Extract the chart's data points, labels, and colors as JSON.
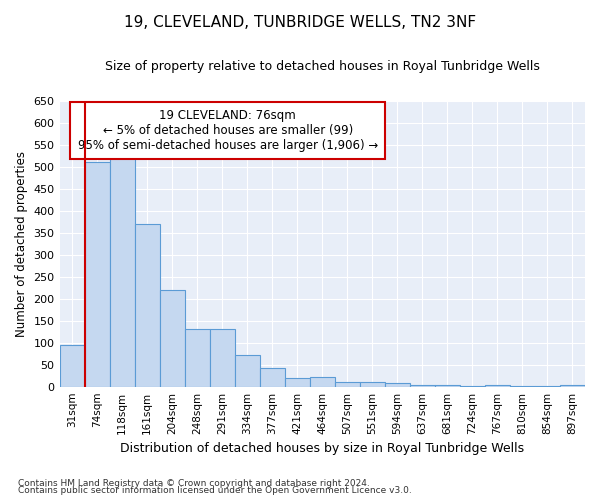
{
  "title": "19, CLEVELAND, TUNBRIDGE WELLS, TN2 3NF",
  "subtitle": "Size of property relative to detached houses in Royal Tunbridge Wells",
  "xlabel": "Distribution of detached houses by size in Royal Tunbridge Wells",
  "ylabel": "Number of detached properties",
  "footnote1": "Contains HM Land Registry data © Crown copyright and database right 2024.",
  "footnote2": "Contains public sector information licensed under the Open Government Licence v3.0.",
  "annotation_title": "19 CLEVELAND: 76sqm",
  "annotation_line2": "← 5% of detached houses are smaller (99)",
  "annotation_line3": "95% of semi-detached houses are larger (1,906) →",
  "bar_color": "#c5d8f0",
  "bar_edge_color": "#5b9bd5",
  "vline_color": "#cc0000",
  "annotation_box_color": "#ffffff",
  "annotation_box_edge": "#cc0000",
  "background_color": "#e8eef8",
  "grid_color": "#ffffff",
  "categories": [
    "31sqm",
    "74sqm",
    "118sqm",
    "161sqm",
    "204sqm",
    "248sqm",
    "291sqm",
    "334sqm",
    "377sqm",
    "421sqm",
    "464sqm",
    "507sqm",
    "551sqm",
    "594sqm",
    "637sqm",
    "681sqm",
    "724sqm",
    "767sqm",
    "810sqm",
    "854sqm",
    "897sqm"
  ],
  "values": [
    95,
    510,
    540,
    370,
    220,
    130,
    130,
    72,
    42,
    20,
    22,
    10,
    10,
    8,
    3,
    3,
    2,
    3,
    2,
    2,
    3
  ],
  "ylim": [
    0,
    650
  ],
  "yticks": [
    0,
    50,
    100,
    150,
    200,
    250,
    300,
    350,
    400,
    450,
    500,
    550,
    600,
    650
  ],
  "vline_x_index": 1,
  "figsize": [
    6.0,
    5.0
  ],
  "dpi": 100
}
